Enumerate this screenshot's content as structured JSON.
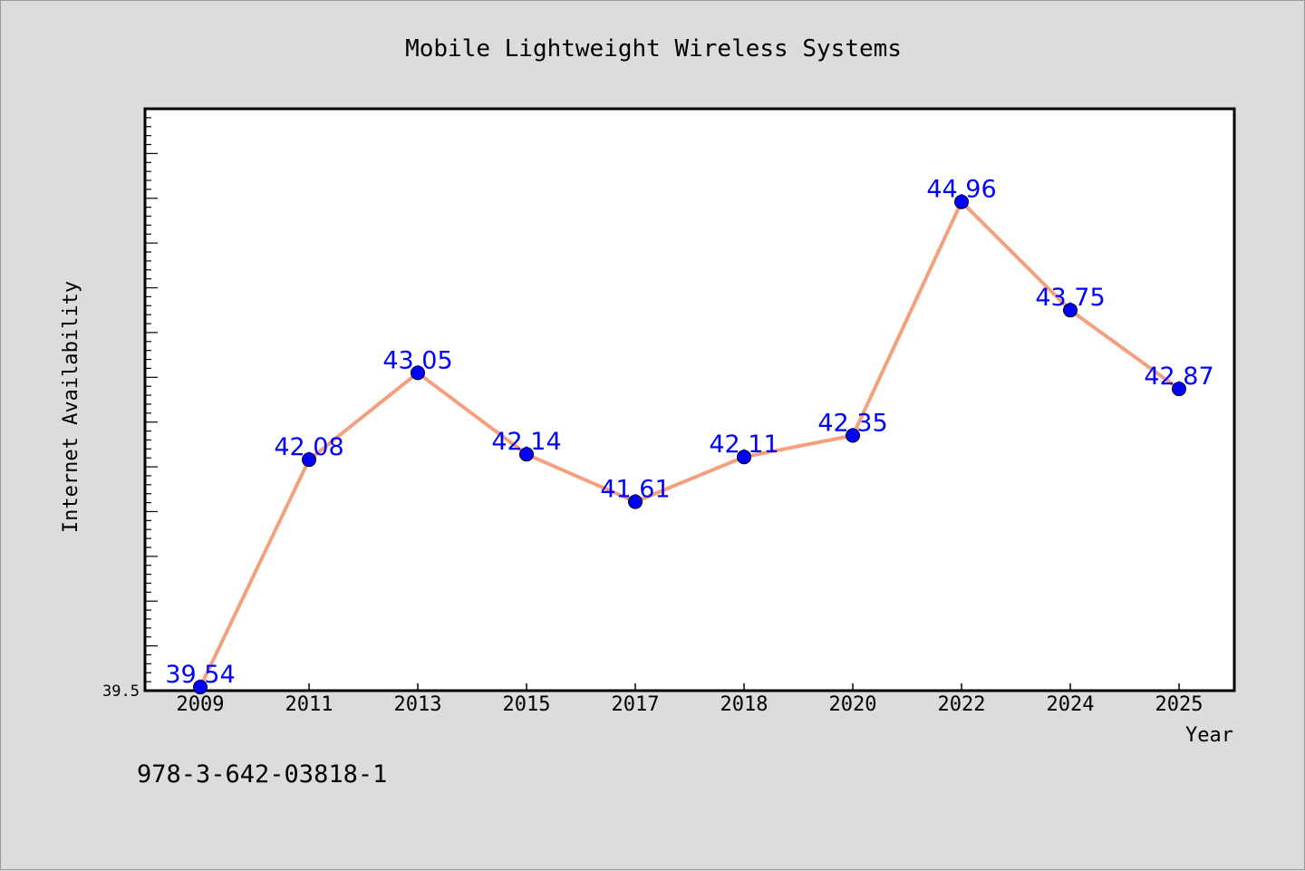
{
  "chart_data": {
    "type": "line",
    "title": "Mobile Lightweight Wireless Systems",
    "xlabel": "Year",
    "ylabel": "Internet Availability",
    "categories": [
      "2009",
      "2011",
      "2013",
      "2015",
      "2017",
      "2018",
      "2020",
      "2022",
      "2024",
      "2025"
    ],
    "series": [
      {
        "values": [
          39.54,
          42.08,
          43.05,
          42.14,
          41.61,
          42.11,
          42.35,
          44.96,
          43.75,
          42.87
        ],
        "labels": [
          "39.54",
          "42.08",
          "43.05",
          "42.14",
          "41.61",
          "42.11",
          "42.35",
          "44.96",
          "43.75",
          "42.87"
        ]
      }
    ],
    "ylim": [
      39.5,
      46.0
    ],
    "ytick_labels": [
      "39.5"
    ],
    "grid": false,
    "line_color": "#f4a07e",
    "marker_color": "#0000ff",
    "label_color": "#0000ff"
  },
  "footer": {
    "isbn": "978-3-642-03818-1"
  }
}
